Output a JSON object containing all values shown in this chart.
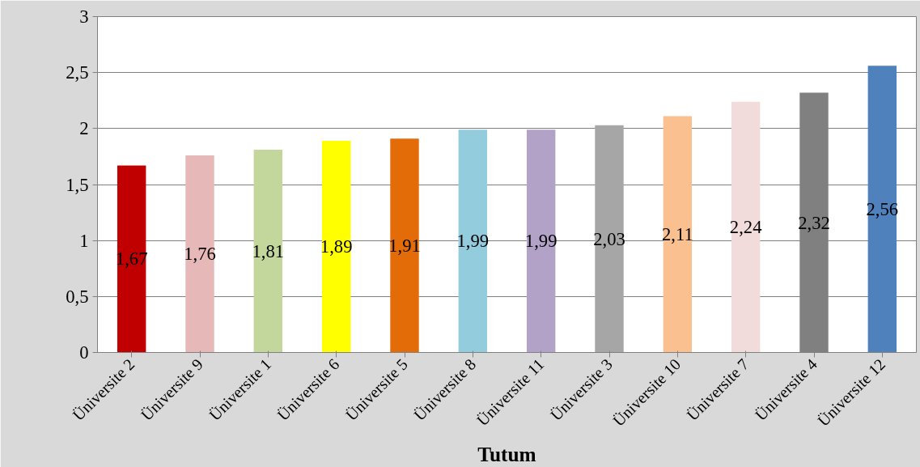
{
  "chart_data": {
    "type": "bar",
    "xlabel": "Tutum",
    "categories": [
      "Üniversite 2",
      "Üniversite 9",
      "Üniversite 1",
      "Üniversite 6",
      "Üniversite 5",
      "Üniversite 8",
      "Üniversite 11",
      "Üniversite 3",
      "Üniversite 10",
      "Üniversite 7",
      "Üniversite 4",
      "Üniversite 12"
    ],
    "values": [
      1.67,
      1.76,
      1.81,
      1.89,
      1.91,
      1.99,
      1.99,
      2.03,
      2.11,
      2.24,
      2.32,
      2.56
    ],
    "value_labels": [
      "1,67",
      "1,76",
      "1,81",
      "1,89",
      "1,91",
      "1,99",
      "1,99",
      "2,03",
      "2,11",
      "2,24",
      "2,32",
      "2,56"
    ],
    "colors": [
      "#c00000",
      "#e6b9b8",
      "#c3d69b",
      "#ffff00",
      "#e36c09",
      "#93cddd",
      "#b2a2c7",
      "#a6a6a6",
      "#fac090",
      "#f2dcdb",
      "#808080",
      "#4f81bd"
    ],
    "ylim": [
      0,
      3
    ],
    "yticks": [
      0,
      {
        "value": 0.5,
        "label": "0,5"
      },
      1,
      {
        "value": 1.5,
        "label": "1,5"
      },
      2,
      {
        "value": 2.5,
        "label": "2,5"
      },
      3
    ],
    "grid": "y"
  }
}
